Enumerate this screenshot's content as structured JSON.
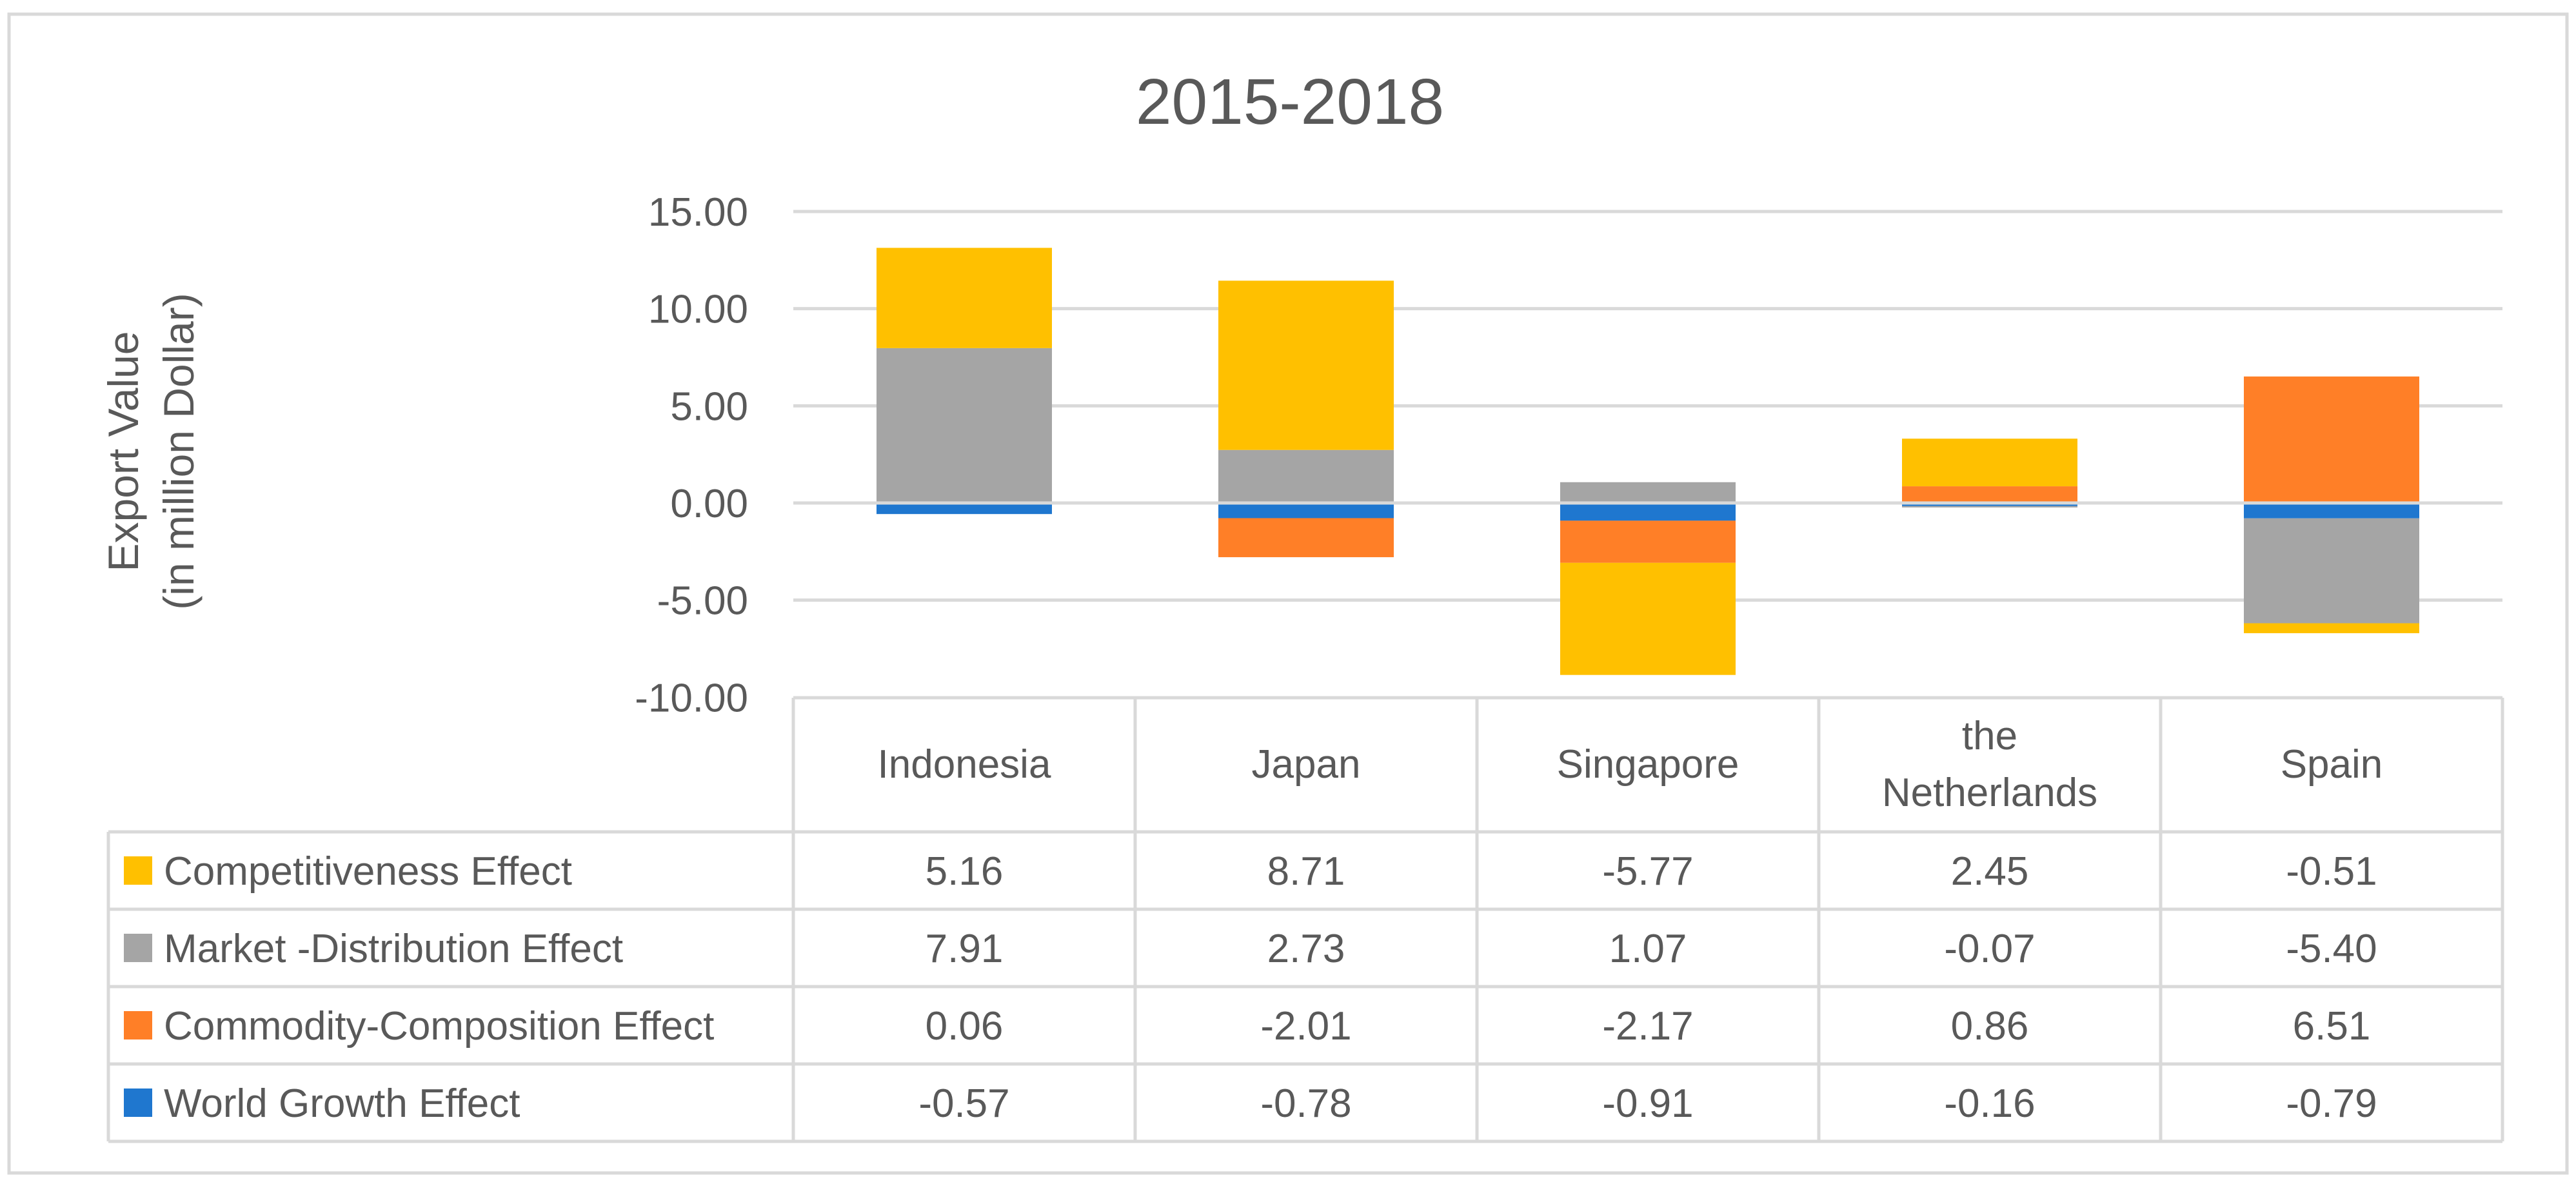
{
  "chart_data": {
    "type": "bar",
    "stacked": true,
    "title": "2015-2018",
    "ylabel": "Export Value\n(in million Dollar)",
    "ylim": [
      -10,
      15
    ],
    "yticks": [
      "15.00",
      "10.00",
      "5.00",
      "0.00",
      "-5.00",
      "-10.00"
    ],
    "ytick_values": [
      15,
      10,
      5,
      0,
      -5,
      -10
    ],
    "categories": [
      "Indonesia",
      "Japan",
      "Singapore",
      "the Netherlands",
      "Spain"
    ],
    "category_lines": [
      [
        "Indonesia"
      ],
      [
        "Japan"
      ],
      [
        "Singapore"
      ],
      [
        "the",
        "Netherlands"
      ],
      [
        "Spain"
      ]
    ],
    "series": [
      {
        "name": "Competitiveness Effect",
        "color": "#ffc000",
        "values": [
          5.16,
          8.71,
          -5.77,
          2.45,
          -0.51
        ],
        "labels": [
          "5.16",
          "8.71",
          "-5.77",
          "2.45",
          "-0.51"
        ]
      },
      {
        "name": "Market -Distribution Effect",
        "color": "#a5a5a5",
        "values": [
          7.91,
          2.73,
          1.07,
          -0.07,
          -5.4
        ],
        "labels": [
          "7.91",
          "2.73",
          "1.07",
          "-0.07",
          "-5.40"
        ]
      },
      {
        "name": "Commodity-Composition Effect",
        "color": "#ff7f27",
        "values": [
          0.06,
          -2.01,
          -2.17,
          0.86,
          6.51
        ],
        "labels": [
          "0.06",
          "-2.01",
          "-2.17",
          "0.86",
          "6.51"
        ]
      },
      {
        "name": "World Growth Effect",
        "color": "#1f77cf",
        "values": [
          -0.57,
          -0.78,
          -0.91,
          -0.16,
          -0.79
        ],
        "labels": [
          "-0.57",
          "-0.78",
          "-0.91",
          "-0.16",
          "-0.79"
        ]
      }
    ],
    "stack_order": [
      3,
      2,
      1,
      0
    ],
    "legend": "data-table",
    "grid": true
  }
}
